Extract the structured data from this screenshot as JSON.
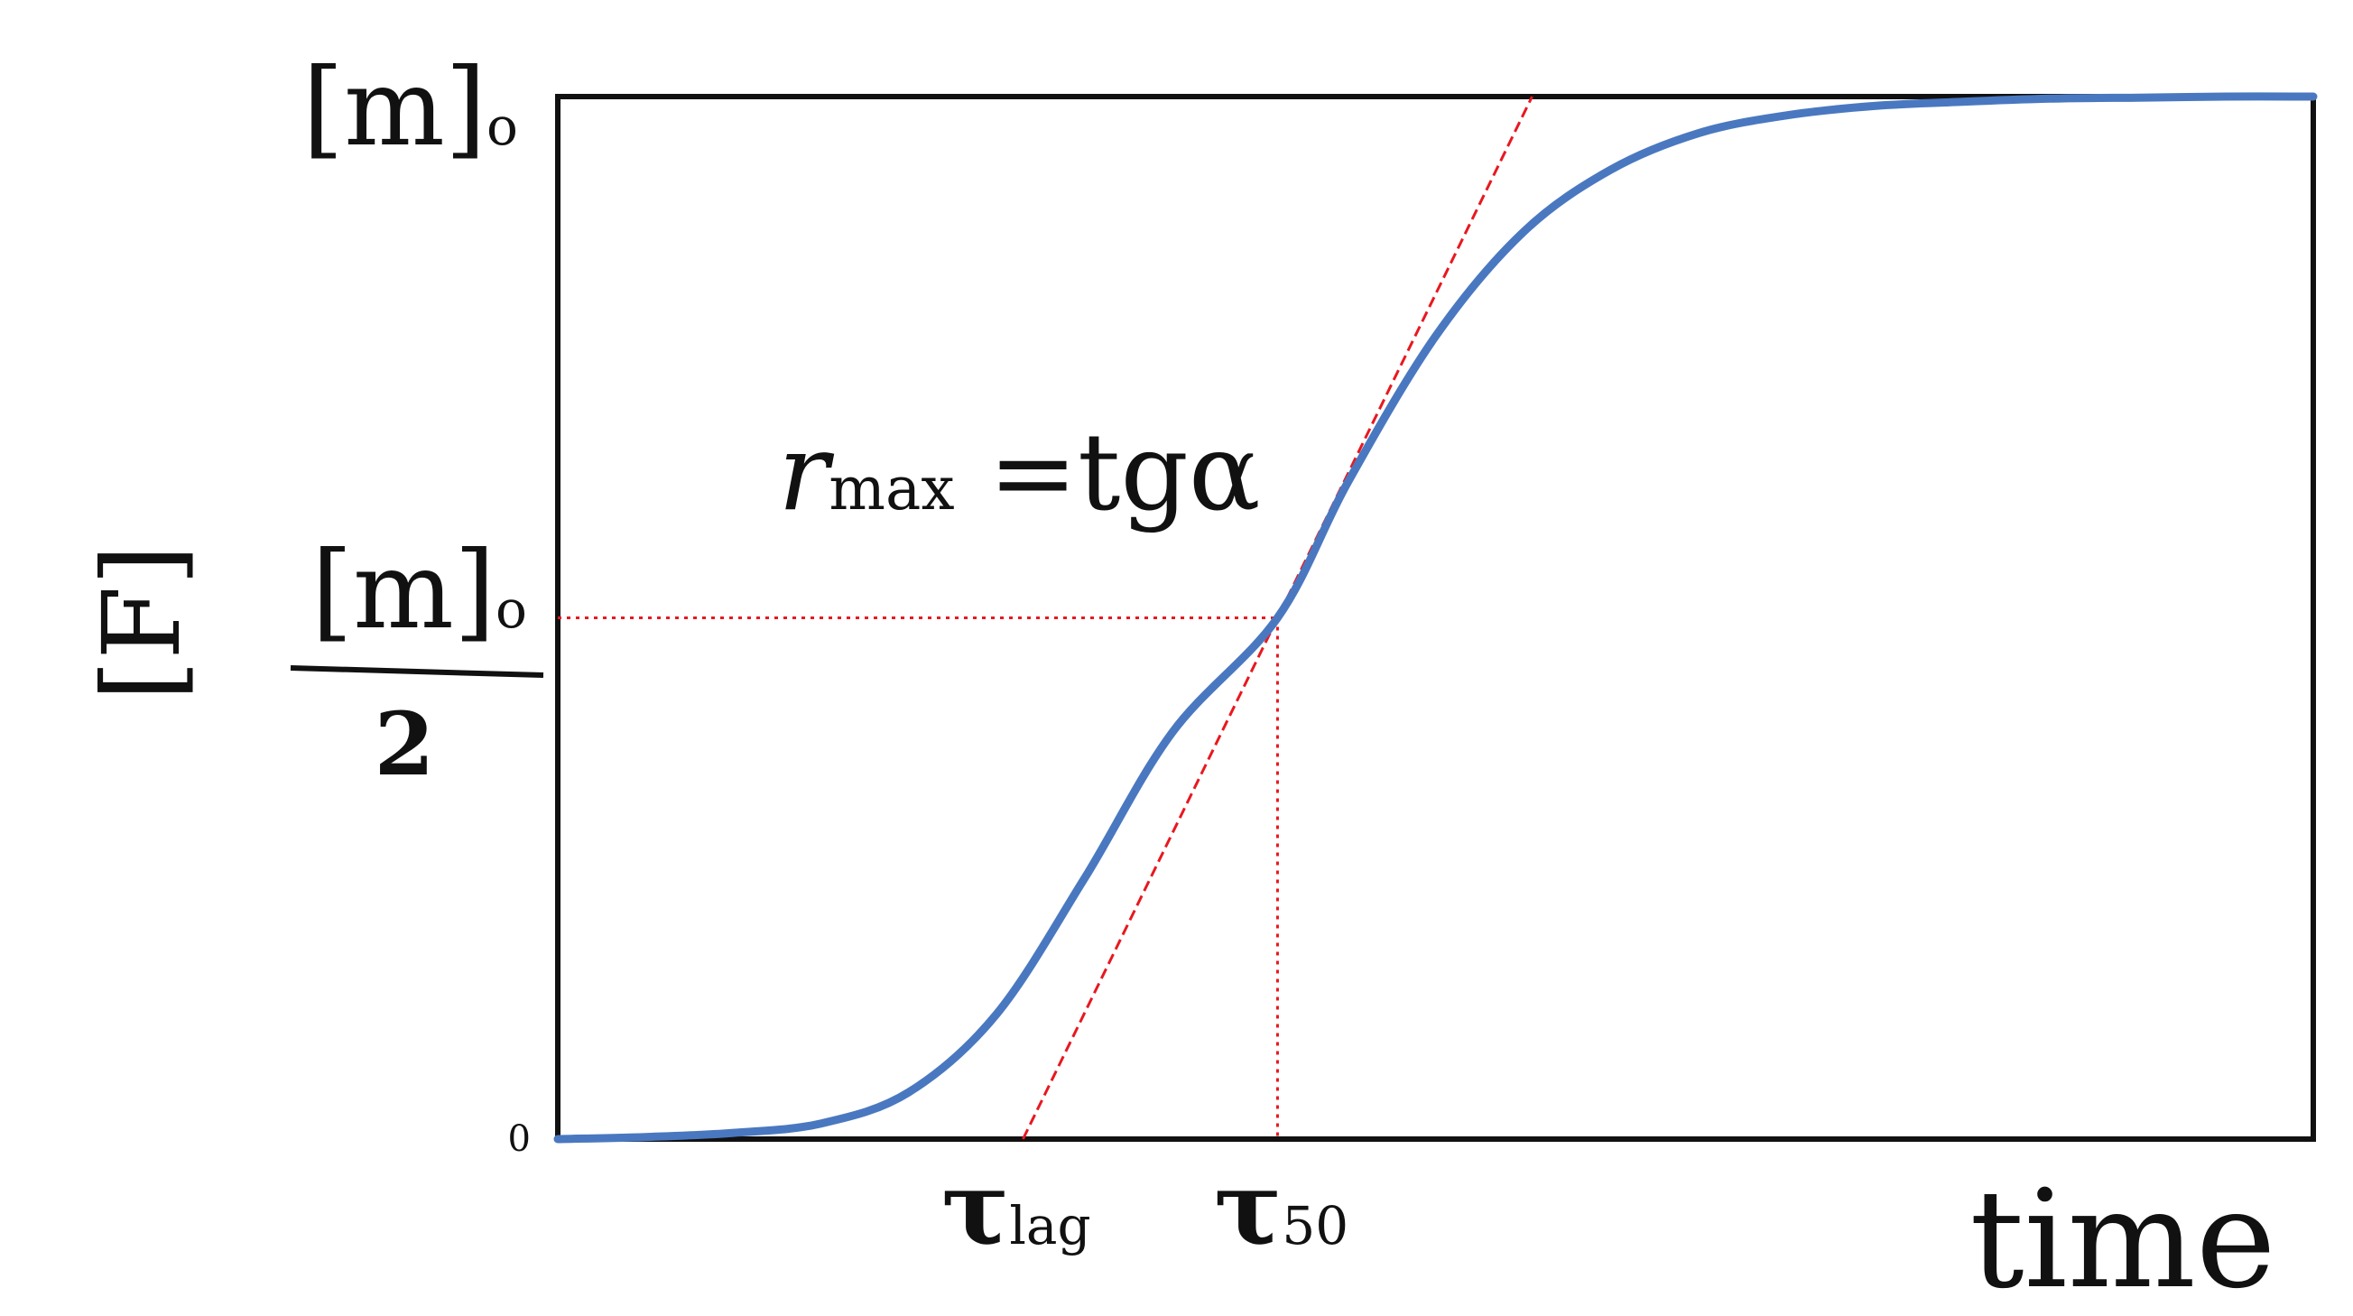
{
  "chart_data": {
    "type": "line",
    "xlabel": "time",
    "ylabel": "[F]",
    "y_axis": {
      "top_label": {
        "main": "[m]",
        "sub": "o"
      },
      "mid_label": {
        "main": "[m]",
        "sub": "o",
        "denominator": "2"
      },
      "zero_label": "0"
    },
    "x_markers": [
      {
        "id": "tau_lag",
        "symbol": "τ",
        "sub": "lag"
      },
      {
        "id": "tau_50",
        "symbol": "τ",
        "sub": "50"
      }
    ],
    "annotation": {
      "main": "r",
      "sub": "max",
      "rest": " =tgα"
    },
    "series": [
      {
        "curve": "sigmoid",
        "x_range": [
          0,
          1
        ],
        "y_range": [
          0,
          1
        ],
        "midpoint_x": 0.41,
        "tau_lag_x": 0.265,
        "x": [
          0,
          0.05,
          0.1,
          0.15,
          0.2,
          0.25,
          0.3,
          0.35,
          0.41,
          0.45,
          0.5,
          0.55,
          0.6,
          0.65,
          0.7,
          0.75,
          0.8,
          0.85,
          0.9,
          0.95,
          1.0
        ],
        "values": [
          0.0,
          0.002,
          0.006,
          0.015,
          0.045,
          0.12,
          0.25,
          0.39,
          0.5,
          0.63,
          0.77,
          0.87,
          0.93,
          0.965,
          0.982,
          0.991,
          0.995,
          0.998,
          0.999,
          1.0,
          1.0
        ]
      }
    ],
    "colors": {
      "curve": "#4a78c0",
      "guides": "#e8181f",
      "axes": "#111111"
    }
  }
}
